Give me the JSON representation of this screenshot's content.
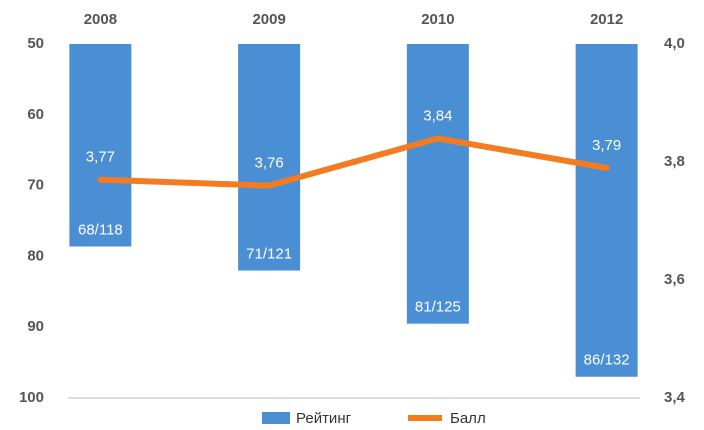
{
  "chart_data": {
    "type": "bar-line",
    "categories": [
      "2008",
      "2009",
      "2010",
      "2012"
    ],
    "series": [
      {
        "name": "Рейтинг",
        "color": "#4a8fd3",
        "values": [
          78.6,
          82,
          89.5,
          97
        ],
        "labels": [
          "68/118",
          "71/121",
          "81/125",
          "86/132"
        ]
      },
      {
        "name": "Балл",
        "color": "#f47b20",
        "axis": "y2",
        "values": [
          3.77,
          3.76,
          3.84,
          3.79
        ],
        "value_labels": [
          "3,77",
          "3,76",
          "3,84",
          "3,79"
        ]
      }
    ],
    "ylim": [
      100,
      50
    ],
    "yticks": [
      50,
      60,
      70,
      80,
      90,
      100
    ],
    "y2lim": [
      3.4,
      4.0
    ],
    "y2ticks": [
      {
        "value": 4.0,
        "label": "4,0"
      },
      {
        "value": 3.8,
        "label": "3,8"
      },
      {
        "value": 3.6,
        "label": "3,6"
      },
      {
        "value": 3.4,
        "label": "3,4"
      }
    ],
    "legend": "bottom"
  }
}
